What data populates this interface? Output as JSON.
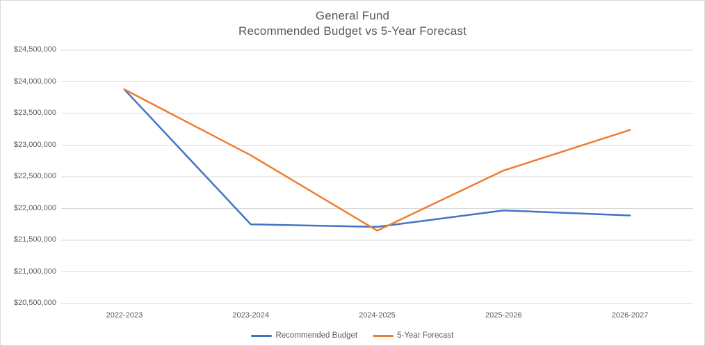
{
  "title": {
    "line1": "General Fund",
    "line2": "Recommended Budget vs 5-Year Forecast"
  },
  "chart_data": {
    "type": "line",
    "title": "General Fund — Recommended Budget vs 5-Year Forecast",
    "categories": [
      "2022-2023",
      "2023-2024",
      "2024-2025",
      "2025-2026",
      "2026-2027"
    ],
    "series": [
      {
        "name": "Recommended Budget",
        "color": "#4472C4",
        "values": [
          23880000,
          21750000,
          21710000,
          21970000,
          21890000
        ]
      },
      {
        "name": "5-Year Forecast",
        "color": "#ED7D31",
        "values": [
          23880000,
          22840000,
          21650000,
          22600000,
          23240000
        ]
      }
    ],
    "ylim": [
      20500000,
      24500000
    ],
    "y_tick_values": [
      24500000,
      24000000,
      23500000,
      23000000,
      22500000,
      22000000,
      21500000,
      21000000,
      20500000
    ],
    "y_tick_labels": [
      "$24,500,000",
      "$24,000,000",
      "$23,500,000",
      "$23,000,000",
      "$22,500,000",
      "$22,000,000",
      "$21,500,000",
      "$21,000,000",
      "$20,500,000"
    ],
    "xlabel": "",
    "ylabel": "",
    "grid": true,
    "legend_position": "bottom"
  },
  "colors": {
    "gridline": "#D9D9D9",
    "axis_text": "#595959",
    "title_text": "#595959",
    "background": "#FFFFFF",
    "border": "#D9D9D9"
  }
}
